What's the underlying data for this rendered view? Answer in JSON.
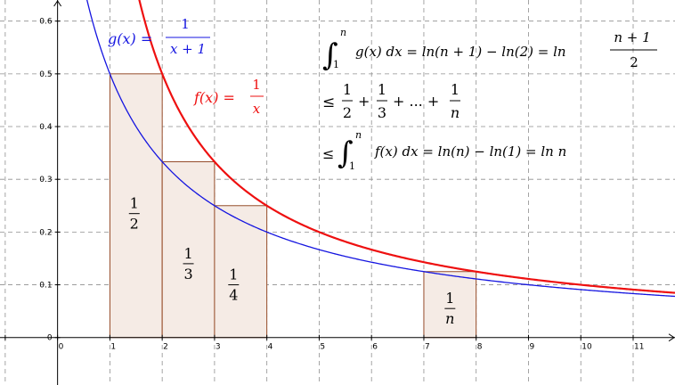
{
  "chart_data": {
    "type": "line",
    "xlim": [
      -1.1,
      11.8
    ],
    "ylim": [
      -0.09,
      0.64
    ],
    "x_ticks": [
      "0",
      "1",
      "2",
      "3",
      "4",
      "5",
      "6",
      "7",
      "8",
      "9",
      "10",
      "11"
    ],
    "y_ticks": [
      "0",
      "0.1",
      "0.2",
      "0.3",
      "0.4",
      "0.5",
      "0.6"
    ],
    "grid": true,
    "series": [
      {
        "name": "g(x) = 1/(x+1)",
        "color": "#1515e0",
        "from": 0.0,
        "to": 11.8
      },
      {
        "name": "f(x) = 1/x",
        "color": "#ee1010",
        "from": 1.3,
        "to": 11.8
      }
    ],
    "rectangles": [
      {
        "x0": 1,
        "x1": 2,
        "height": 0.5,
        "label_num": "1",
        "label_den": "2"
      },
      {
        "x0": 2,
        "x1": 3,
        "height": 0.3333,
        "label_num": "1",
        "label_den": "3"
      },
      {
        "x0": 3,
        "x1": 4,
        "height": 0.25,
        "label_num": "1",
        "label_den": "4"
      },
      {
        "x0": 7,
        "x1": 8,
        "height": 0.125,
        "label_num": "1",
        "label_den": "n"
      }
    ],
    "rect_fill": "#f5ebe5",
    "rect_stroke": "#8b3a14"
  },
  "labels": {
    "g_name": "g(x) =",
    "g_num": "1",
    "g_den": "x + 1",
    "f_name": "f(x) =",
    "f_num": "1",
    "f_den": "x"
  },
  "formulas": {
    "line1_upper": "n",
    "line1_lower": "1",
    "line1_body": "g(x) dx = ln(n + 1) − ln(2) = ln",
    "line1_num": "n + 1",
    "line1_den": "2",
    "line2_lead": "≤",
    "line2_terms": [
      {
        "num": "1",
        "den": "2",
        "after": "+"
      },
      {
        "num": "1",
        "den": "3",
        "after": "+ ... +"
      },
      {
        "num": "1",
        "den": "n",
        "after": ""
      }
    ],
    "line3_lead": "≤",
    "line3_upper": "n",
    "line3_lower": "1",
    "line3_body": "f(x) dx = ln(n) − ln(1) = ln n"
  }
}
